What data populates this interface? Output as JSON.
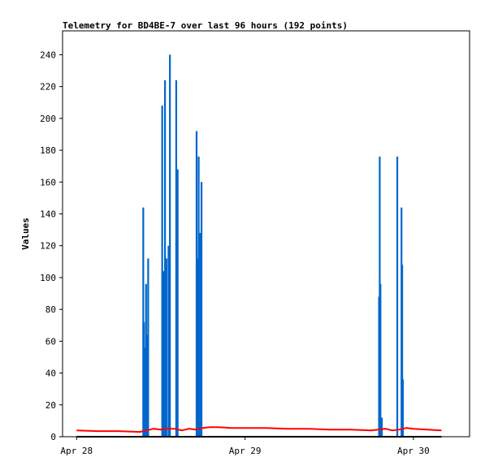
{
  "chart_data": {
    "type": "line",
    "title": "Telemetry for BD4BE-7 over last 96 hours (192 points)",
    "xlabel": "",
    "ylabel": "Values",
    "ylim": [
      0,
      255
    ],
    "yticks": [
      0,
      20,
      40,
      60,
      80,
      100,
      120,
      140,
      160,
      180,
      200,
      220,
      240
    ],
    "xticks": [
      "Apr 28",
      "Apr 29",
      "Apr 30"
    ],
    "xtick_hours": [
      0,
      24,
      48
    ],
    "xlim_hours": [
      -2,
      56
    ],
    "grid": false,
    "legend": "none",
    "series": [
      {
        "color": "#0066cc",
        "style": "spikes",
        "x_hours": [
          9.5,
          9.6,
          9.8,
          9.9,
          10.0,
          10.2,
          12.2,
          12.4,
          12.6,
          12.8,
          13.1,
          13.3,
          14.2,
          14.4,
          17.1,
          17.2,
          17.4,
          17.6,
          17.8,
          43.1,
          43.2,
          43.3,
          43.5,
          45.7,
          46.3,
          46.4,
          46.5
        ],
        "values": [
          144,
          72,
          56,
          96,
          64,
          112,
          208,
          104,
          224,
          112,
          120,
          240,
          224,
          168,
          192,
          112,
          176,
          128,
          160,
          88,
          176,
          96,
          12,
          176,
          144,
          108,
          36
        ]
      },
      {
        "color": "#ff0000",
        "style": "line",
        "x_hours": [
          0,
          3,
          6,
          9,
          10,
          11,
          12,
          13,
          14,
          15,
          16,
          17,
          18,
          19,
          20,
          21,
          22,
          24,
          27,
          30,
          33,
          36,
          39,
          42,
          43,
          44,
          45,
          46,
          47,
          48,
          50,
          52
        ],
        "values": [
          4,
          3.5,
          3.5,
          3,
          4,
          5,
          4.5,
          5,
          5,
          4,
          5,
          4.5,
          5.5,
          6,
          6,
          5.8,
          5.5,
          5.5,
          5.5,
          5,
          5,
          4.5,
          4.5,
          4,
          4.5,
          5,
          4,
          4.5,
          5.5,
          5,
          4.5,
          4
        ]
      },
      {
        "color": "#000000",
        "style": "line",
        "x_hours": [
          0,
          52
        ],
        "values": [
          0,
          0
        ]
      }
    ]
  }
}
